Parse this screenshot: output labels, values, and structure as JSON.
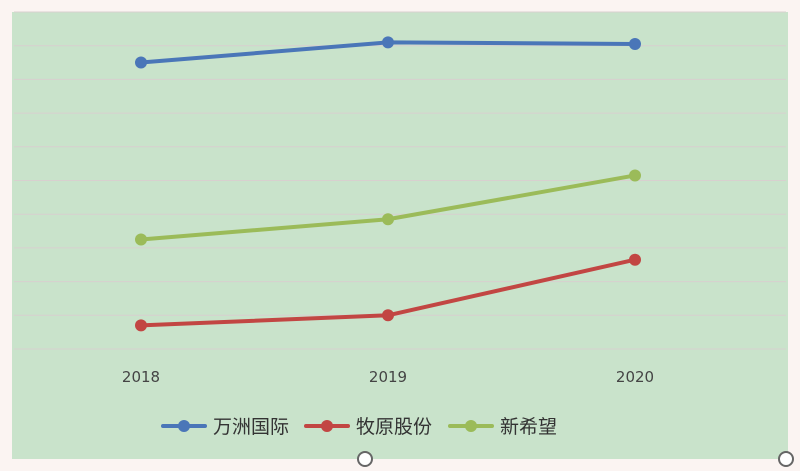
{
  "chart_data": {
    "type": "line",
    "categories": [
      "2018",
      "2019",
      "2020"
    ],
    "series": [
      {
        "name": "万洲国际",
        "values": [
          85,
          91,
          90.5
        ],
        "color": "#4a76b8"
      },
      {
        "name": "牧原股份",
        "values": [
          7,
          10,
          26.5
        ],
        "color": "#c24643"
      },
      {
        "name": "新希望",
        "values": [
          32.5,
          38.5,
          51.5
        ],
        "color": "#9bbb59"
      }
    ],
    "ylim": [
      0,
      100
    ],
    "grid": true,
    "legend_position": "bottom",
    "background": "#c9e3cb"
  }
}
